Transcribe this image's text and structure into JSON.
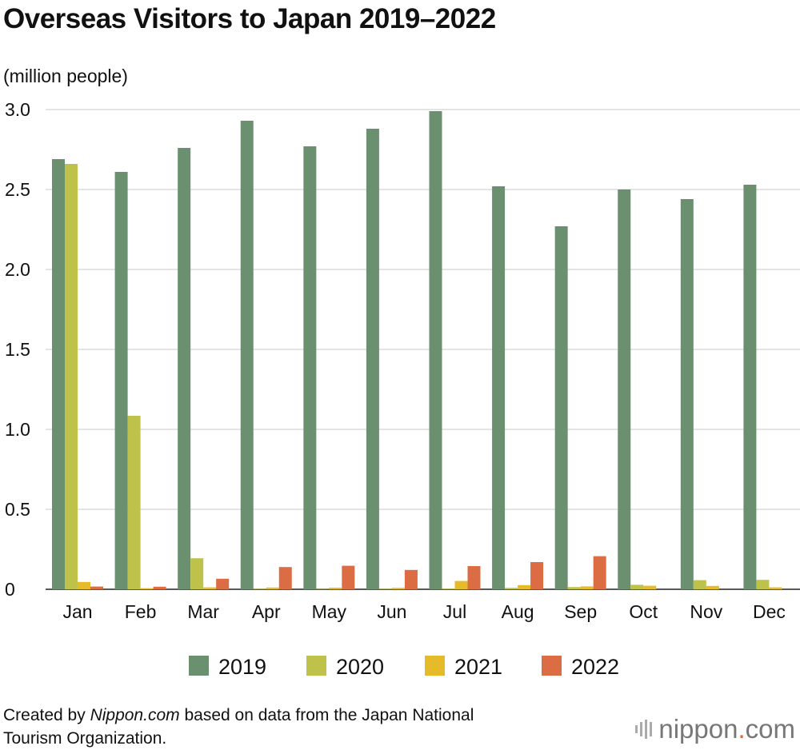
{
  "chart_data": {
    "type": "bar",
    "title": "Overseas Visitors to Japan 2019–2022",
    "ylabel": "(million people)",
    "xlabel": "",
    "ylim": [
      0,
      3.0
    ],
    "yticks": [
      "0",
      "0.5",
      "1.0",
      "1.5",
      "2.0",
      "2.5",
      "3.0"
    ],
    "ytick_values": [
      0,
      0.5,
      1.0,
      1.5,
      2.0,
      2.5,
      3.0
    ],
    "grid": true,
    "legend_position": "bottom",
    "categories": [
      "Jan",
      "Feb",
      "Mar",
      "Apr",
      "May",
      "Jun",
      "Jul",
      "Aug",
      "Sep",
      "Oct",
      "Nov",
      "Dec"
    ],
    "series": [
      {
        "name": "2019",
        "color": "#6b9070",
        "values": [
          2.69,
          2.61,
          2.76,
          2.93,
          2.77,
          2.88,
          2.99,
          2.52,
          2.27,
          2.5,
          2.44,
          2.53
        ]
      },
      {
        "name": "2020",
        "color": "#bec24a",
        "values": [
          2.66,
          1.085,
          0.194,
          0.003,
          0.002,
          0.003,
          0.004,
          0.009,
          0.014,
          0.028,
          0.057,
          0.059
        ]
      },
      {
        "name": "2021",
        "color": "#e5bb2a",
        "values": [
          0.046,
          0.007,
          0.012,
          0.011,
          0.01,
          0.009,
          0.052,
          0.026,
          0.018,
          0.022,
          0.021,
          0.012
        ]
      },
      {
        "name": "2022",
        "color": "#db6c43",
        "values": [
          0.017,
          0.016,
          0.066,
          0.139,
          0.147,
          0.121,
          0.145,
          0.17,
          0.207,
          0.0,
          0.0,
          0.0
        ]
      }
    ]
  },
  "source": {
    "prefix": "Created by ",
    "site": "Nippon.com",
    "suffix": " based on data from the Japan National",
    "line2": "Tourism Organization."
  },
  "logo": {
    "name": "nippon",
    "dot": ".",
    "tld": "com"
  }
}
